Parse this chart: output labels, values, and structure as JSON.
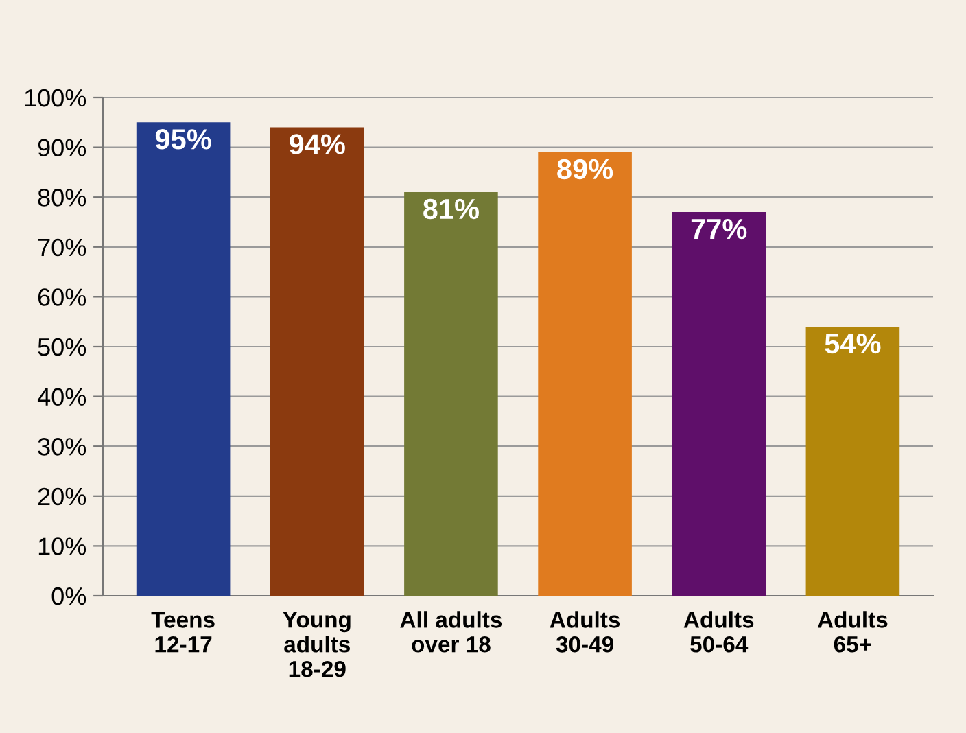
{
  "chart_data": {
    "type": "bar",
    "categories": [
      "Teens\n12-17",
      "Young\nadults\n18-29",
      "All adults\nover 18",
      "Adults\n30-49",
      "Adults\n50-64",
      "Adults\n65+"
    ],
    "values": [
      95,
      94,
      81,
      89,
      77,
      54
    ],
    "colors": [
      "#233c8c",
      "#8b3a0f",
      "#737a35",
      "#e07b1f",
      "#5f0f6a",
      "#b3870b"
    ],
    "value_labels": [
      "95%",
      "94%",
      "81%",
      "89%",
      "77%",
      "54%"
    ],
    "ylim": [
      0,
      100
    ],
    "yticks": [
      {
        "value": 0,
        "label": "0%"
      },
      {
        "value": 10,
        "label": "10%"
      },
      {
        "value": 20,
        "label": "20%"
      },
      {
        "value": 30,
        "label": "30%"
      },
      {
        "value": 40,
        "label": "40%"
      },
      {
        "value": 50,
        "label": "50%"
      },
      {
        "value": 60,
        "label": "60%"
      },
      {
        "value": 70,
        "label": "70%"
      },
      {
        "value": 80,
        "label": "80%"
      },
      {
        "value": 90,
        "label": "90%"
      },
      {
        "value": 100,
        "label": "100%"
      }
    ],
    "grid": "y"
  }
}
